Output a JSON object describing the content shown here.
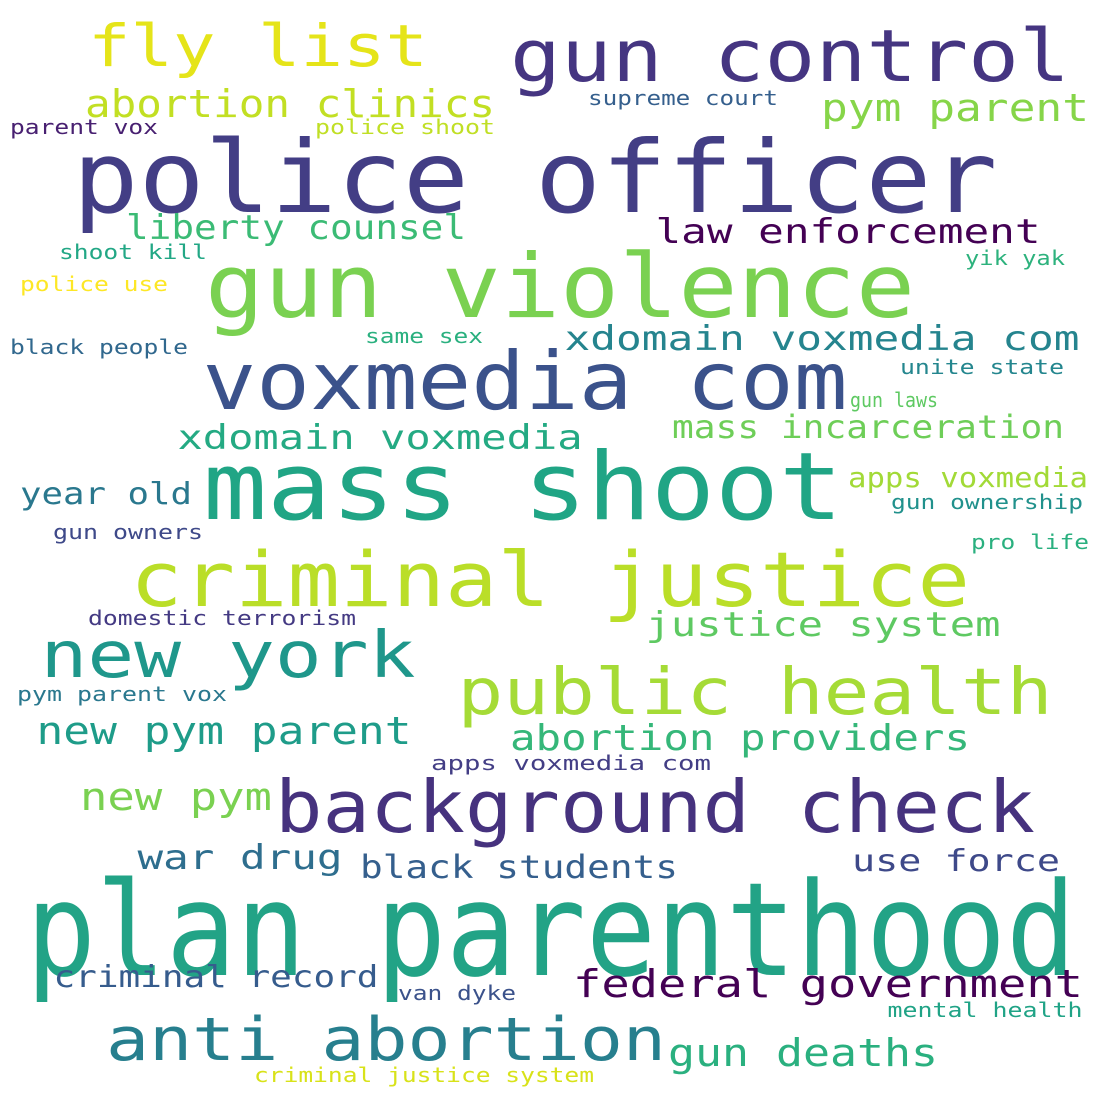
{
  "words": [
    {
      "text": "plan parenthood",
      "color": "#22a386"
    },
    {
      "text": "police officer",
      "color": "#433e85"
    },
    {
      "text": "mass shoot",
      "color": "#20a585"
    },
    {
      "text": "gun violence",
      "color": "#7ad151"
    },
    {
      "text": "criminal justice",
      "color": "#bade28"
    },
    {
      "text": "voxmedia com",
      "color": "#3b528b"
    },
    {
      "text": "background check",
      "color": "#46327e"
    },
    {
      "text": "gun control",
      "color": "#453581"
    },
    {
      "text": "public health",
      "color": "#a5db36"
    },
    {
      "text": "new york",
      "color": "#1f978b"
    },
    {
      "text": "anti abortion",
      "color": "#277f8e"
    },
    {
      "text": "fly list",
      "color": "#e5e419"
    },
    {
      "text": "federal government",
      "color": "#440154"
    },
    {
      "text": "abortion clinics",
      "color": "#c2df23"
    },
    {
      "text": "pym parent",
      "color": "#86d549"
    },
    {
      "text": "new pym parent",
      "color": "#1e9c89"
    },
    {
      "text": "abortion providers",
      "color": "#35b779"
    },
    {
      "text": "gun deaths",
      "color": "#2ab07f"
    },
    {
      "text": "xdomain voxmedia com",
      "color": "#25848e"
    },
    {
      "text": "justice system",
      "color": "#5ec962"
    },
    {
      "text": "law enforcement",
      "color": "#440154"
    },
    {
      "text": "liberty counsel",
      "color": "#3bbb75"
    },
    {
      "text": "xdomain voxmedia",
      "color": "#24aa83"
    },
    {
      "text": "mass incarceration",
      "color": "#6ece58"
    },
    {
      "text": "new pym",
      "color": "#7ad151"
    },
    {
      "text": "war drug",
      "color": "#2e6e8e"
    },
    {
      "text": "black students",
      "color": "#355f8d"
    },
    {
      "text": "use force",
      "color": "#3e4989"
    },
    {
      "text": "criminal record",
      "color": "#365c8d"
    },
    {
      "text": "year old",
      "color": "#2a788e"
    },
    {
      "text": "apps voxmedia",
      "color": "#a2da37"
    },
    {
      "text": "supreme court",
      "color": "#355f8d"
    },
    {
      "text": "parent vox",
      "color": "#482071"
    },
    {
      "text": "police shoot",
      "color": "#c0df25"
    },
    {
      "text": "shoot kill",
      "color": "#22a785"
    },
    {
      "text": "police use",
      "color": "#fde725"
    },
    {
      "text": "yik yak",
      "color": "#2db27d"
    },
    {
      "text": "black people",
      "color": "#31688e"
    },
    {
      "text": "same sex",
      "color": "#2ab07f"
    },
    {
      "text": "unite state",
      "color": "#24868e"
    },
    {
      "text": "gun laws",
      "color": "#5ec962"
    },
    {
      "text": "gun ownership",
      "color": "#21918c"
    },
    {
      "text": "gun owners",
      "color": "#3e4989"
    },
    {
      "text": "pro life",
      "color": "#2ab07f"
    },
    {
      "text": "domestic terrorism",
      "color": "#443a83"
    },
    {
      "text": "pym parent vox",
      "color": "#2a788e"
    },
    {
      "text": "apps voxmedia com",
      "color": "#433e85"
    },
    {
      "text": "van dyke",
      "color": "#3b528b"
    },
    {
      "text": "mental health",
      "color": "#20a386"
    },
    {
      "text": "criminal justice system",
      "color": "#d8e219"
    }
  ]
}
